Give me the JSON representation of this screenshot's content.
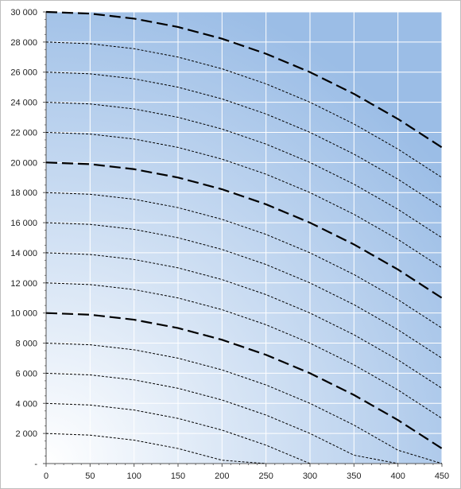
{
  "chart_data": {
    "type": "line",
    "title": "",
    "xlabel": "",
    "ylabel": "",
    "xlim": [
      0,
      450
    ],
    "ylim": [
      0,
      30000
    ],
    "grid": true,
    "legend": "none",
    "x_ticks": [
      "0",
      "50",
      "100",
      "150",
      "200",
      "250",
      "300",
      "350",
      "400",
      "450"
    ],
    "y_ticks": [
      "-",
      "2 000",
      "4 000",
      "6 000",
      "8 000",
      "10 000",
      "12 000",
      "14 000",
      "16 000",
      "18 000",
      "20 000",
      "22 000",
      "24 000",
      "26 000",
      "28 000",
      "30 000"
    ],
    "x": [
      0,
      50,
      100,
      150,
      200,
      250,
      300,
      350,
      400,
      450
    ],
    "series": [
      {
        "style": "dashed-bold",
        "values": [
          30000,
          29889,
          29556,
          29000,
          28222,
          27222,
          26000,
          24556,
          22889,
          21000
        ]
      },
      {
        "style": "dotted",
        "values": [
          28000,
          27889,
          27556,
          27000,
          26222,
          25222,
          24000,
          22556,
          20889,
          19000
        ]
      },
      {
        "style": "dotted",
        "values": [
          26000,
          25889,
          25556,
          25000,
          24222,
          23222,
          22000,
          20556,
          18889,
          17000
        ]
      },
      {
        "style": "dotted",
        "values": [
          24000,
          23889,
          23556,
          23000,
          22222,
          21222,
          20000,
          18556,
          16889,
          15000
        ]
      },
      {
        "style": "dotted",
        "values": [
          22000,
          21889,
          21556,
          21000,
          20222,
          19222,
          18000,
          16556,
          14889,
          13000
        ]
      },
      {
        "style": "dashed-bold",
        "values": [
          20000,
          19889,
          19556,
          19000,
          18222,
          17222,
          16000,
          14556,
          12889,
          11000
        ]
      },
      {
        "style": "dotted",
        "values": [
          18000,
          17889,
          17556,
          17000,
          16222,
          15222,
          14000,
          12556,
          10889,
          9000
        ]
      },
      {
        "style": "dotted",
        "values": [
          16000,
          15889,
          15556,
          15000,
          14222,
          13222,
          12000,
          10556,
          8889,
          7000
        ]
      },
      {
        "style": "dotted",
        "values": [
          14000,
          13889,
          13556,
          13000,
          12222,
          11222,
          10000,
          8556,
          6889,
          5000
        ]
      },
      {
        "style": "dotted",
        "values": [
          12000,
          11889,
          11556,
          11000,
          10222,
          9222,
          8000,
          6556,
          4889,
          3000
        ]
      },
      {
        "style": "dashed-bold",
        "values": [
          10000,
          9889,
          9556,
          9000,
          8222,
          7222,
          6000,
          4556,
          2889,
          1000
        ]
      },
      {
        "style": "dotted",
        "values": [
          8000,
          7889,
          7556,
          7000,
          6222,
          5222,
          4000,
          2556,
          889,
          0
        ]
      },
      {
        "style": "dotted",
        "values": [
          6000,
          5889,
          5556,
          5000,
          4222,
          3222,
          2000,
          556,
          0,
          0
        ]
      },
      {
        "style": "dotted",
        "values": [
          4000,
          3889,
          3556,
          3000,
          2222,
          1222,
          0,
          0,
          0,
          0
        ]
      },
      {
        "style": "dotted",
        "values": [
          2000,
          1889,
          1556,
          1000,
          222,
          0,
          0,
          0,
          0,
          0
        ]
      }
    ],
    "colors": {
      "line": "#000000",
      "grid": "#ffffff",
      "gradient_light": "#ffffff",
      "gradient_dark": "#9bbde6",
      "frame": "#bfbfbf"
    }
  }
}
